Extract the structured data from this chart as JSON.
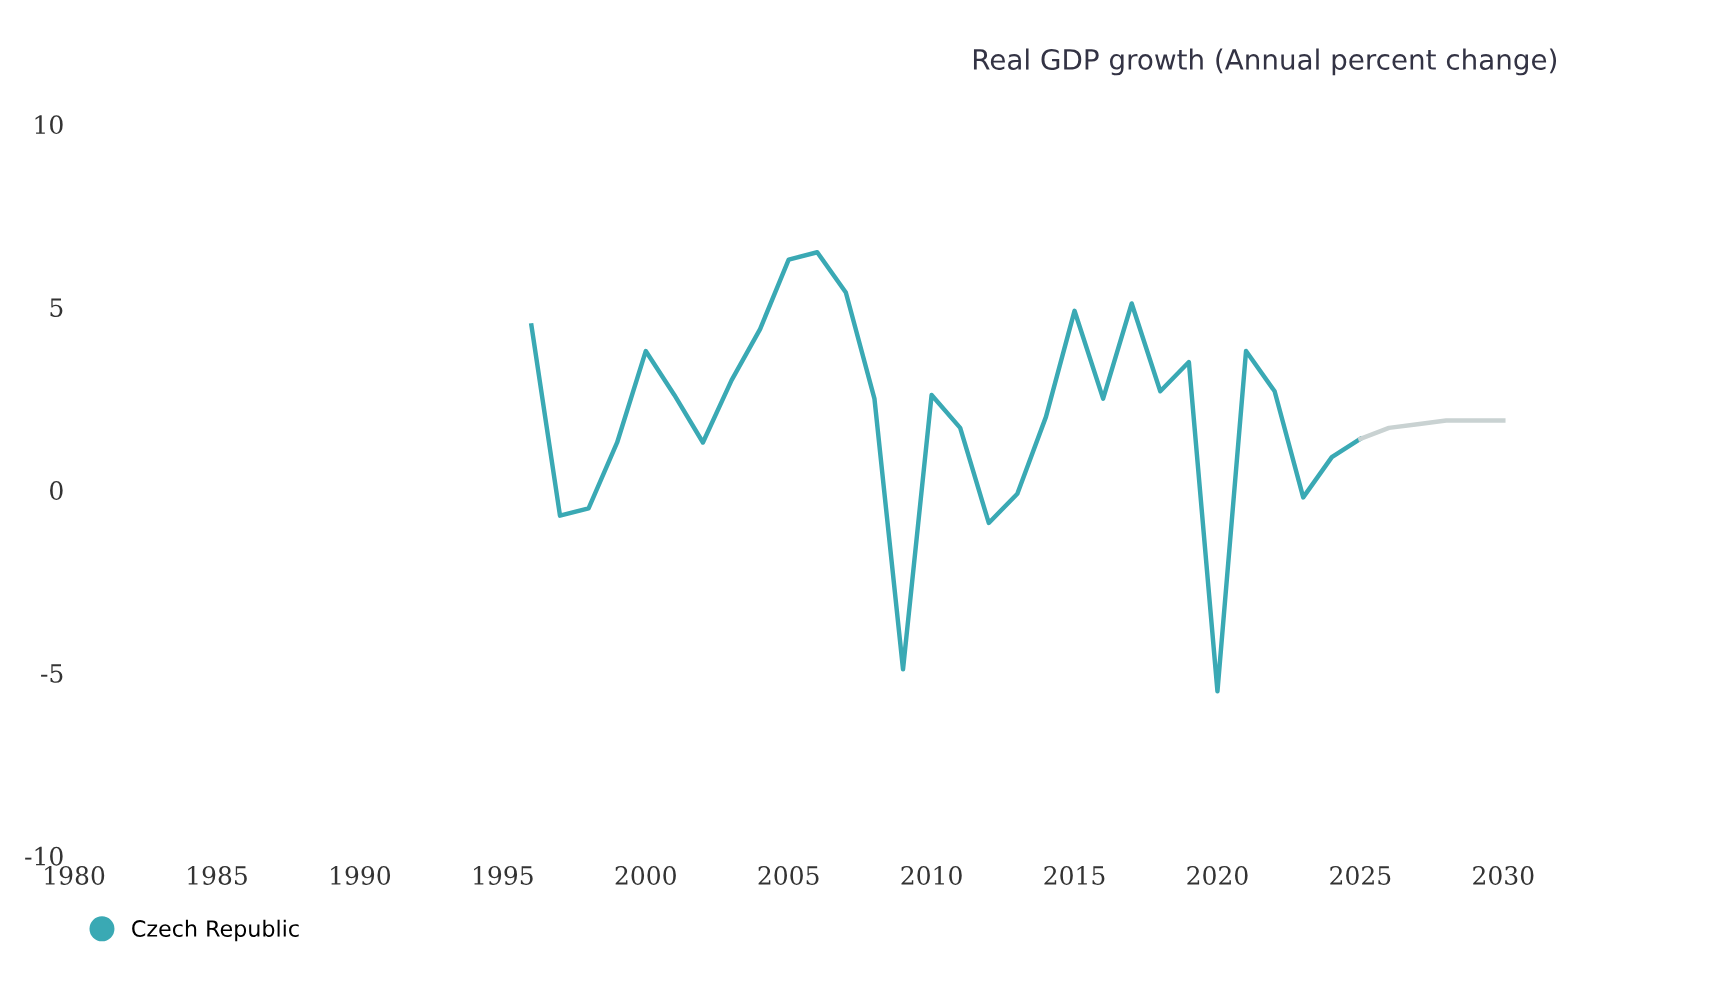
{
  "chart_data": {
    "type": "line",
    "title": "Real GDP growth (Annual percent change)",
    "series": [
      {
        "name": "Czech Republic",
        "color": "#3aa9b4",
        "x": [
          1996,
          1997,
          1998,
          1999,
          2000,
          2001,
          2002,
          2003,
          2004,
          2005,
          2006,
          2007,
          2008,
          2009,
          2010,
          2011,
          2012,
          2013,
          2014,
          2015,
          2016,
          2017,
          2018,
          2019,
          2020,
          2021,
          2022,
          2023,
          2024,
          2025
        ],
        "values": [
          4.5,
          -0.7,
          -0.5,
          1.3,
          3.8,
          2.6,
          1.3,
          3.0,
          4.4,
          6.3,
          6.5,
          5.4,
          2.5,
          -4.9,
          2.6,
          1.7,
          -0.9,
          -0.1,
          2.0,
          4.9,
          2.5,
          5.1,
          2.7,
          3.5,
          -5.5,
          3.8,
          2.7,
          -0.2,
          0.9,
          1.4
        ]
      },
      {
        "color": "#c9d2d2",
        "x": [
          2025,
          2026,
          2027,
          2028,
          2029,
          2030
        ],
        "values": [
          1.4,
          1.7,
          1.8,
          1.9,
          1.9,
          1.9
        ]
      }
    ],
    "xlim": [
      1980,
      2030
    ],
    "ylim": [
      -10,
      10
    ],
    "xticks": [
      1980,
      1985,
      1990,
      1995,
      2000,
      2005,
      2010,
      2015,
      2020,
      2025,
      2030
    ],
    "yticks": [
      -10,
      -5,
      0,
      5,
      10
    ],
    "grid": false,
    "legend": "bottom left",
    "marker": "none",
    "line_style": "solid"
  }
}
